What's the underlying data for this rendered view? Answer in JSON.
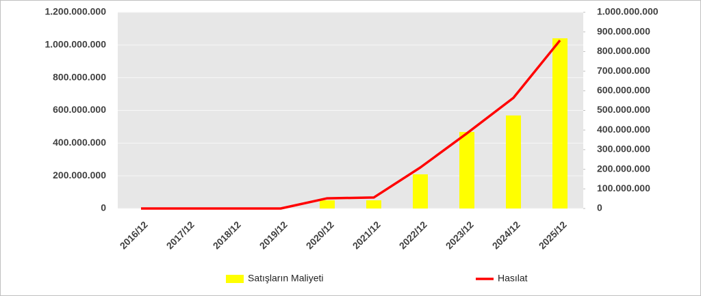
{
  "chart_data": {
    "type": "bar",
    "categories": [
      "2016/12",
      "2017/12",
      "2018/12",
      "2019/12",
      "2020/12",
      "2021/12",
      "2022/12",
      "2023/12",
      "2024/12",
      "2025/12"
    ],
    "series": [
      {
        "name": "Satışların Maliyeti",
        "type": "bar",
        "color": "#ffff00",
        "values": [
          0,
          0,
          0,
          0,
          50000000,
          50000000,
          209000000,
          468000000,
          569000000,
          1041000000
        ]
      },
      {
        "name": "Hasılat",
        "type": "line",
        "axis": "y2",
        "color": "#ff0000",
        "values": [
          0,
          0,
          0,
          0,
          52000000,
          56000000,
          209000000,
          383000000,
          564000000,
          857000000
        ]
      }
    ],
    "ylim": [
      0,
      1200000000
    ],
    "yticks": [
      0,
      {
        "value": 200000000,
        "label": "200.000.000"
      },
      {
        "value": 400000000,
        "label": "400.000.000"
      },
      {
        "value": 600000000,
        "label": "600.000.000"
      },
      {
        "value": 800000000,
        "label": "800.000.000"
      },
      {
        "value": 1000000000,
        "label": "1.000.000.000"
      },
      {
        "value": 1200000000,
        "label": "1.200.000.000"
      }
    ],
    "y2lim": [
      0,
      1000000000
    ],
    "y2ticks": [
      0,
      {
        "value": 100000000,
        "label": "100.000.000"
      },
      {
        "value": 200000000,
        "label": "200.000.000"
      },
      {
        "value": 300000000,
        "label": "300.000.000"
      },
      {
        "value": 400000000,
        "label": "400.000.000"
      },
      {
        "value": 500000000,
        "label": "500.000.000"
      },
      {
        "value": 600000000,
        "label": "600.000.000"
      },
      {
        "value": 700000000,
        "label": "700.000.000"
      },
      {
        "value": 800000000,
        "label": "800.000.000"
      },
      {
        "value": 900000000,
        "label": "900.000.000"
      },
      {
        "value": 1000000000,
        "label": "1.000.000.000"
      }
    ],
    "grid": true
  }
}
